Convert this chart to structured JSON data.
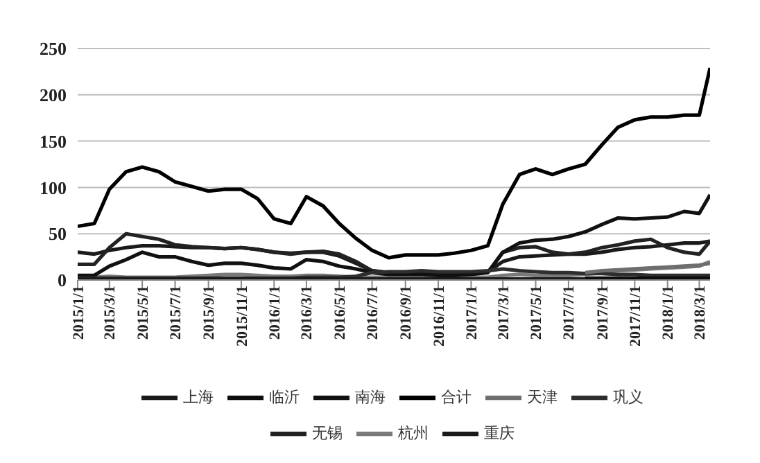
{
  "chart_data": {
    "type": "line",
    "x": [
      "2015-01-01",
      "2015-02-01",
      "2015-03-01",
      "2015-04-01",
      "2015-05-01",
      "2015-06-01",
      "2015-07-01",
      "2015-08-01",
      "2015-09-01",
      "2015-10-01",
      "2015-11-01",
      "2015-12-01",
      "2016-01-01",
      "2016-02-01",
      "2016-03-01",
      "2016-04-01",
      "2016-05-01",
      "2016-06-01",
      "2016-07-01",
      "2016-08-01",
      "2016-09-01",
      "2016-10-01",
      "2016-11-01",
      "2016-12-01",
      "2017-01-01",
      "2017-02-01",
      "2017-03-01",
      "2017-04-01",
      "2017-05-01",
      "2017-06-01",
      "2017-07-01",
      "2017-08-01",
      "2017-09-01",
      "2017-10-01",
      "2017-11-01",
      "2017-12-01",
      "2018-01-01",
      "2018-02-01",
      "2018-03-01",
      "2018-03-21"
    ],
    "series": [
      {
        "name": "上海",
        "color": "#1a1a1a",
        "values": [
          30,
          28,
          32,
          35,
          37,
          37,
          36,
          35,
          35,
          34,
          35,
          33,
          30,
          29,
          30,
          30,
          26,
          18,
          10,
          8,
          8,
          8,
          7,
          8,
          8,
          9,
          20,
          25,
          26,
          27,
          28,
          28,
          30,
          33,
          35,
          36,
          38,
          40,
          40,
          42
        ]
      },
      {
        "name": "无锡",
        "color": "#222222",
        "values": [
          17,
          17,
          35,
          50,
          47,
          44,
          38,
          36,
          35,
          34,
          35,
          33,
          30,
          28,
          30,
          31,
          28,
          20,
          10,
          8,
          8,
          7,
          7,
          7,
          8,
          8,
          30,
          35,
          36,
          30,
          28,
          30,
          35,
          38,
          42,
          44,
          35,
          30,
          28,
          42
        ]
      },
      {
        "name": "杭州",
        "color": "#7a7a7a",
        "values": [
          3,
          3,
          4,
          3,
          3,
          3,
          3,
          4,
          5,
          6,
          6,
          5,
          4,
          4,
          5,
          5,
          4,
          3,
          3,
          3,
          3,
          3,
          3,
          3,
          3,
          3,
          5,
          6,
          5,
          5,
          5,
          6,
          8,
          10,
          11,
          12,
          13,
          14,
          15,
          20
        ]
      },
      {
        "name": "南海",
        "color": "#111111",
        "values": [
          5,
          5,
          15,
          22,
          30,
          25,
          25,
          20,
          16,
          18,
          18,
          16,
          13,
          12,
          22,
          20,
          15,
          12,
          8,
          6,
          6,
          6,
          5,
          5,
          6,
          8,
          30,
          40,
          43,
          44,
          47,
          52,
          60,
          67,
          66,
          67,
          68,
          74,
          72,
          92
        ]
      },
      {
        "name": "巩义",
        "color": "#2e2e2e",
        "values": [
          2,
          2,
          2,
          2,
          2,
          2,
          2,
          2,
          2,
          2,
          2,
          2,
          2,
          2,
          3,
          3,
          3,
          4,
          8,
          9,
          9,
          10,
          9,
          9,
          9,
          10,
          12,
          10,
          9,
          8,
          8,
          7,
          7,
          6,
          6,
          5,
          5,
          5,
          5,
          5
        ]
      },
      {
        "name": "天津",
        "color": "#6e6e6e",
        "values": [
          null,
          null,
          null,
          null,
          null,
          null,
          null,
          null,
          null,
          null,
          null,
          null,
          null,
          null,
          null,
          null,
          null,
          null,
          null,
          null,
          null,
          null,
          null,
          null,
          null,
          null,
          null,
          null,
          null,
          null,
          null,
          8,
          10,
          11,
          12,
          13,
          14,
          15,
          16,
          18
        ]
      },
      {
        "name": "重庆",
        "color": "#1a1a1a",
        "values": [
          1,
          1,
          1,
          1,
          1,
          1,
          1,
          1,
          1,
          1,
          1,
          1,
          1,
          1,
          1,
          1,
          1,
          1,
          1,
          1,
          1,
          1,
          1,
          1,
          1,
          1,
          1,
          1,
          1,
          1,
          1,
          1,
          1,
          1,
          1,
          1,
          1,
          1,
          1,
          1
        ]
      },
      {
        "name": "临沂",
        "color": "#0d0d0d",
        "values": [
          null,
          null,
          null,
          null,
          null,
          null,
          null,
          null,
          null,
          null,
          null,
          null,
          null,
          null,
          null,
          null,
          null,
          null,
          null,
          null,
          null,
          null,
          null,
          null,
          null,
          null,
          null,
          null,
          null,
          null,
          null,
          2,
          2,
          2,
          2,
          2,
          2,
          2,
          2,
          2
        ]
      },
      {
        "name": "合计",
        "color": "#000000",
        "values": [
          58,
          61,
          98,
          117,
          122,
          117,
          106,
          101,
          96,
          98,
          98,
          88,
          66,
          61,
          90,
          80,
          61,
          45,
          32,
          24,
          27,
          27,
          27,
          29,
          32,
          37,
          82,
          114,
          120,
          114,
          120,
          125,
          146,
          165,
          173,
          176,
          176,
          178,
          178,
          229
        ]
      }
    ],
    "xlim": [
      "2015-01-01",
      "2018-03-21"
    ],
    "xticks": [
      {
        "value": "2015-01-01",
        "label": "2015/1/1"
      },
      {
        "value": "2015-03-01",
        "label": "2015/3/1"
      },
      {
        "value": "2015-05-01",
        "label": "2015/5/1"
      },
      {
        "value": "2015-07-01",
        "label": "2015/7/1"
      },
      {
        "value": "2015-09-01",
        "label": "2015/9/1"
      },
      {
        "value": "2015-11-01",
        "label": "2015/11/1"
      },
      {
        "value": "2016-01-01",
        "label": "2016/1/1"
      },
      {
        "value": "2016-03-01",
        "label": "2016/3/1"
      },
      {
        "value": "2016-05-01",
        "label": "2016/5/1"
      },
      {
        "value": "2016-07-01",
        "label": "2016/7/1"
      },
      {
        "value": "2016-09-01",
        "label": "2016/9/1"
      },
      {
        "value": "2016-11-01",
        "label": "2016/11/1"
      },
      {
        "value": "2017-01-01",
        "label": "2017/1/1"
      },
      {
        "value": "2017-03-01",
        "label": "2017/3/1"
      },
      {
        "value": "2017-05-01",
        "label": "2017/5/1"
      },
      {
        "value": "2017-07-01",
        "label": "2017/7/1"
      },
      {
        "value": "2017-09-01",
        "label": "2017/9/1"
      },
      {
        "value": "2017-11-01",
        "label": "2017/11/1"
      },
      {
        "value": "2018-01-01",
        "label": "2018/1/1"
      },
      {
        "value": "2018-03-01",
        "label": "2018/3/1"
      }
    ],
    "ylim": [
      0,
      250
    ],
    "yticks": [
      0,
      50,
      100,
      150,
      200,
      250
    ],
    "grid": "y",
    "legend": "bottom",
    "marker": "none",
    "line_style": "solid"
  }
}
